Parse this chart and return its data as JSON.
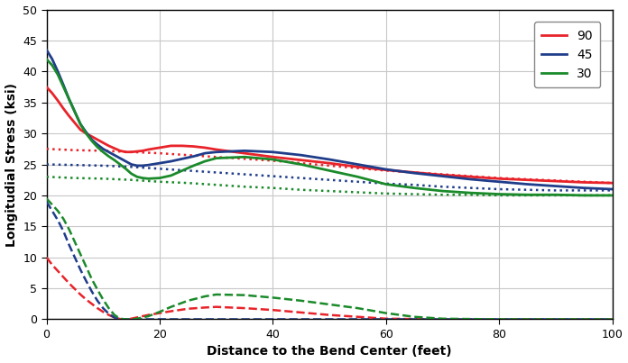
{
  "xlabel": "Distance to the Bend Center (feet)",
  "ylabel": "Longitudial Stress (ksi)",
  "xlim": [
    0,
    100
  ],
  "ylim": [
    0,
    50
  ],
  "xticks": [
    0,
    20,
    40,
    60,
    80,
    100
  ],
  "yticks": [
    0,
    5,
    10,
    15,
    20,
    25,
    30,
    35,
    40,
    45,
    50
  ],
  "colors": {
    "90": "#e8232a",
    "45": "#1f3d8a",
    "30": "#1a8a2a"
  },
  "solid_90": {
    "x": [
      0,
      1,
      2,
      3,
      4,
      5,
      6,
      7,
      8,
      9,
      10,
      11,
      12,
      13,
      14,
      15,
      16,
      17,
      18,
      20,
      22,
      24,
      26,
      28,
      30,
      35,
      40,
      45,
      50,
      55,
      60,
      65,
      70,
      75,
      80,
      85,
      90,
      95,
      100
    ],
    "y": [
      37.5,
      36.5,
      35.3,
      34.0,
      32.8,
      31.7,
      30.6,
      30.0,
      29.5,
      29.0,
      28.5,
      28.0,
      27.6,
      27.2,
      27.0,
      27.0,
      27.1,
      27.2,
      27.4,
      27.7,
      28.0,
      28.0,
      27.9,
      27.7,
      27.4,
      26.8,
      26.2,
      25.7,
      25.2,
      24.6,
      24.1,
      23.7,
      23.3,
      23.0,
      22.7,
      22.5,
      22.3,
      22.1,
      22.0
    ]
  },
  "solid_45": {
    "x": [
      0,
      1,
      2,
      3,
      4,
      5,
      6,
      7,
      8,
      9,
      10,
      11,
      12,
      13,
      14,
      15,
      16,
      17,
      18,
      20,
      22,
      24,
      26,
      28,
      30,
      35,
      40,
      45,
      50,
      55,
      60,
      65,
      70,
      75,
      80,
      85,
      90,
      95,
      100
    ],
    "y": [
      43.5,
      42.0,
      40.0,
      37.8,
      35.5,
      33.5,
      31.5,
      30.2,
      29.0,
      28.2,
      27.5,
      27.0,
      26.5,
      26.0,
      25.5,
      25.0,
      24.8,
      24.8,
      24.9,
      25.2,
      25.5,
      25.9,
      26.3,
      26.8,
      27.0,
      27.2,
      27.0,
      26.5,
      25.8,
      25.0,
      24.2,
      23.6,
      23.1,
      22.6,
      22.2,
      21.8,
      21.5,
      21.2,
      21.0
    ]
  },
  "solid_30": {
    "x": [
      0,
      1,
      2,
      3,
      4,
      5,
      6,
      7,
      8,
      9,
      10,
      11,
      12,
      13,
      14,
      15,
      16,
      17,
      18,
      20,
      22,
      24,
      26,
      28,
      30,
      35,
      40,
      45,
      50,
      55,
      60,
      65,
      70,
      75,
      80,
      85,
      90,
      95,
      100
    ],
    "y": [
      42.0,
      41.0,
      39.5,
      37.5,
      35.5,
      33.5,
      31.5,
      30.0,
      28.8,
      27.8,
      27.0,
      26.3,
      25.7,
      25.0,
      24.3,
      23.5,
      23.0,
      22.8,
      22.7,
      22.8,
      23.2,
      24.0,
      24.8,
      25.5,
      26.0,
      26.2,
      25.8,
      25.0,
      24.0,
      23.0,
      21.8,
      21.2,
      20.7,
      20.4,
      20.2,
      20.1,
      20.1,
      20.0,
      20.0
    ]
  },
  "dotted_90": {
    "x": [
      0,
      5,
      10,
      15,
      20,
      25,
      30,
      35,
      40,
      45,
      50,
      55,
      60,
      65,
      70,
      75,
      80,
      85,
      90,
      95,
      100
    ],
    "y": [
      27.5,
      27.3,
      27.2,
      27.0,
      26.8,
      26.5,
      26.2,
      25.9,
      25.6,
      25.2,
      24.8,
      24.4,
      24.0,
      23.7,
      23.4,
      23.1,
      22.8,
      22.6,
      22.4,
      22.2,
      22.0
    ]
  },
  "dotted_45": {
    "x": [
      0,
      5,
      10,
      15,
      20,
      25,
      30,
      35,
      40,
      45,
      50,
      55,
      60,
      65,
      70,
      75,
      80,
      85,
      90,
      95,
      100
    ],
    "y": [
      25.0,
      24.9,
      24.8,
      24.6,
      24.3,
      24.0,
      23.7,
      23.4,
      23.1,
      22.8,
      22.5,
      22.2,
      21.9,
      21.7,
      21.4,
      21.2,
      21.0,
      20.9,
      20.8,
      20.8,
      20.8
    ]
  },
  "dotted_30": {
    "x": [
      0,
      5,
      10,
      15,
      20,
      25,
      30,
      35,
      40,
      45,
      50,
      55,
      60,
      65,
      70,
      75,
      80,
      85,
      90,
      95,
      100
    ],
    "y": [
      23.0,
      22.8,
      22.7,
      22.5,
      22.2,
      22.0,
      21.7,
      21.4,
      21.2,
      20.9,
      20.7,
      20.5,
      20.3,
      20.2,
      20.1,
      20.1,
      20.0,
      20.0,
      20.0,
      20.0,
      20.0
    ]
  },
  "dashed_90": {
    "x": [
      0,
      1,
      2,
      3,
      4,
      5,
      6,
      7,
      8,
      9,
      10,
      11,
      12,
      13,
      14,
      15,
      16,
      18,
      20,
      22,
      25,
      28,
      30,
      35,
      40,
      45,
      50,
      55,
      60,
      70,
      80,
      90,
      100
    ],
    "y": [
      10.0,
      8.8,
      7.8,
      6.8,
      5.8,
      4.9,
      4.0,
      3.2,
      2.5,
      1.8,
      1.2,
      0.7,
      0.3,
      0.05,
      0.0,
      0.1,
      0.3,
      0.7,
      1.0,
      1.3,
      1.7,
      1.9,
      2.0,
      1.8,
      1.5,
      1.1,
      0.7,
      0.4,
      0.1,
      0.0,
      0.0,
      0.0,
      0.0
    ]
  },
  "dashed_45": {
    "x": [
      0,
      1,
      2,
      3,
      4,
      5,
      6,
      7,
      8,
      9,
      10,
      11,
      12,
      13,
      14,
      15,
      16,
      18,
      20,
      25,
      30,
      40,
      50,
      60,
      70,
      80,
      90,
      100
    ],
    "y": [
      19.0,
      17.5,
      16.0,
      14.2,
      12.0,
      10.0,
      8.0,
      6.2,
      4.5,
      3.0,
      1.8,
      0.9,
      0.3,
      0.05,
      0.0,
      0.0,
      0.0,
      0.0,
      0.0,
      0.0,
      0.0,
      0.0,
      0.0,
      0.0,
      0.0,
      0.0,
      0.0,
      0.0
    ]
  },
  "dashed_30": {
    "x": [
      0,
      1,
      2,
      3,
      4,
      5,
      6,
      7,
      8,
      9,
      10,
      11,
      12,
      13,
      14,
      15,
      16,
      18,
      20,
      22,
      25,
      28,
      30,
      35,
      40,
      45,
      50,
      55,
      60,
      65,
      70,
      80,
      90,
      100
    ],
    "y": [
      19.5,
      18.5,
      17.5,
      16.2,
      14.5,
      12.5,
      10.5,
      8.5,
      6.5,
      4.8,
      3.2,
      1.8,
      0.7,
      0.1,
      0.0,
      0.0,
      0.1,
      0.5,
      1.2,
      2.0,
      3.0,
      3.7,
      4.0,
      3.9,
      3.5,
      3.0,
      2.4,
      1.8,
      1.0,
      0.4,
      0.1,
      0.0,
      0.0,
      0.0
    ]
  },
  "linewidth_solid": 2.0,
  "linewidth_dotted": 1.8,
  "linewidth_dashed": 1.8,
  "bg_color": "#ffffff",
  "grid_color": "#c8c8c8"
}
